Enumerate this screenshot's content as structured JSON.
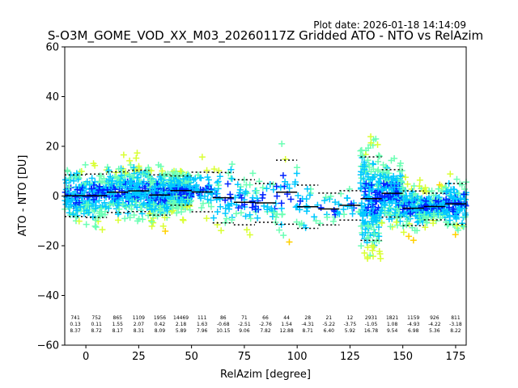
{
  "plot_date": "Plot date: 2026-01-18 14:14:09",
  "chart_data": {
    "type": "scatter",
    "title": "S-O3M_GOME_VOD_XX_M03_20260117Z Gridded ATO - NTO vs RelAzim",
    "xlabel": "RelAzim [degree]",
    "ylabel": "ATO - NTO [DU]",
    "xlim": [
      -10,
      180
    ],
    "ylim": [
      -60,
      60
    ],
    "xticks": [
      0,
      25,
      50,
      75,
      100,
      125,
      150,
      175
    ],
    "yticks": [
      -60,
      -40,
      -20,
      0,
      20,
      40,
      60
    ],
    "grid": false,
    "colors": [
      "#0022ff",
      "#00c8ff",
      "#6bffb4",
      "#d9ff33",
      "#ffd000"
    ],
    "bin_stats": [
      {
        "x": -5,
        "count": "741",
        "median": "0.13",
        "spread": "8.37"
      },
      {
        "x": 5,
        "count": "752",
        "median": "0.11",
        "spread": "8.72"
      },
      {
        "x": 15,
        "count": "865",
        "median": "1.55",
        "spread": "8.17"
      },
      {
        "x": 25,
        "count": "1109",
        "median": "2.07",
        "spread": "8.31"
      },
      {
        "x": 35,
        "count": "1956",
        "median": "0.42",
        "spread": "8.09"
      },
      {
        "x": 45,
        "count": "14469",
        "median": "2.18",
        "spread": "5.89"
      },
      {
        "x": 55,
        "count": "111",
        "median": "1.63",
        "spread": "7.96"
      },
      {
        "x": 65,
        "count": "86",
        "median": "-0.68",
        "spread": "10.15"
      },
      {
        "x": 75,
        "count": "71",
        "median": "-2.51",
        "spread": "9.06"
      },
      {
        "x": 85,
        "count": "66",
        "median": "-2.76",
        "spread": "7.82"
      },
      {
        "x": 95,
        "count": "44",
        "median": "1.54",
        "spread": "12.88"
      },
      {
        "x": 105,
        "count": "28",
        "median": "-4.31",
        "spread": "8.71"
      },
      {
        "x": 115,
        "count": "21",
        "median": "-5.22",
        "spread": "6.40"
      },
      {
        "x": 125,
        "count": "12",
        "median": "-3.75",
        "spread": "5.92"
      },
      {
        "x": 135,
        "count": "2931",
        "median": "-1.05",
        "spread": "16.78"
      },
      {
        "x": 145,
        "count": "1821",
        "median": "1.08",
        "spread": "9.54"
      },
      {
        "x": 155,
        "count": "1159",
        "median": "-4.93",
        "spread": "6.98"
      },
      {
        "x": 165,
        "count": "926",
        "median": "-4.22",
        "spread": "5.36"
      },
      {
        "x": 175,
        "count": "811",
        "median": "-3.18",
        "spread": "8.22"
      }
    ]
  }
}
